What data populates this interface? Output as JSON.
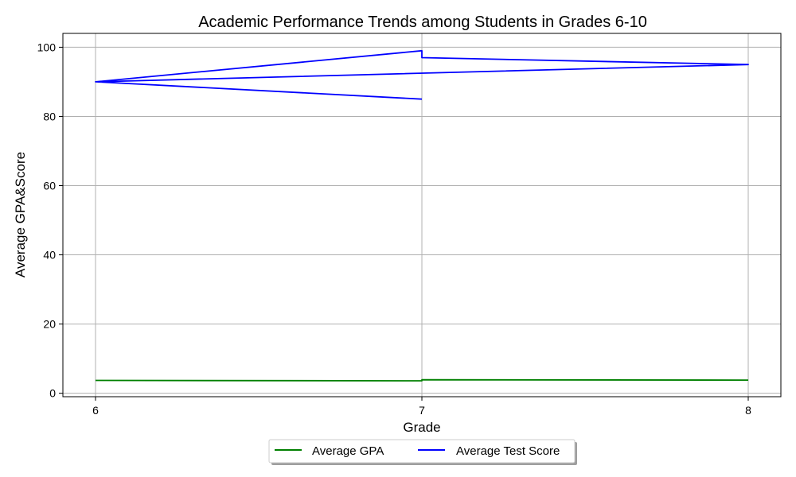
{
  "chart_data": {
    "type": "line",
    "title": "Academic Performance Trends among Students in Grades 6-10",
    "xlabel": "Grade",
    "ylabel": "Average GPA&Score",
    "xlim": [
      5.9,
      8.1
    ],
    "ylim": [
      -1,
      104
    ],
    "xticks": [
      6,
      7,
      8
    ],
    "yticks": [
      0,
      20,
      40,
      60,
      80,
      100
    ],
    "grid": true,
    "legend_position": "bottom-center",
    "series": [
      {
        "name": "Average GPA",
        "color": "#008000",
        "x": [
          6,
          7,
          7,
          7,
          8
        ],
        "y": [
          3.7,
          3.6,
          3.8,
          3.9,
          3.8
        ]
      },
      {
        "name": "Average Test Score",
        "color": "#0000ff",
        "x": [
          6,
          7,
          7,
          7,
          8,
          6,
          7
        ],
        "y": [
          90,
          99,
          97,
          97,
          95,
          90,
          85
        ]
      }
    ]
  }
}
